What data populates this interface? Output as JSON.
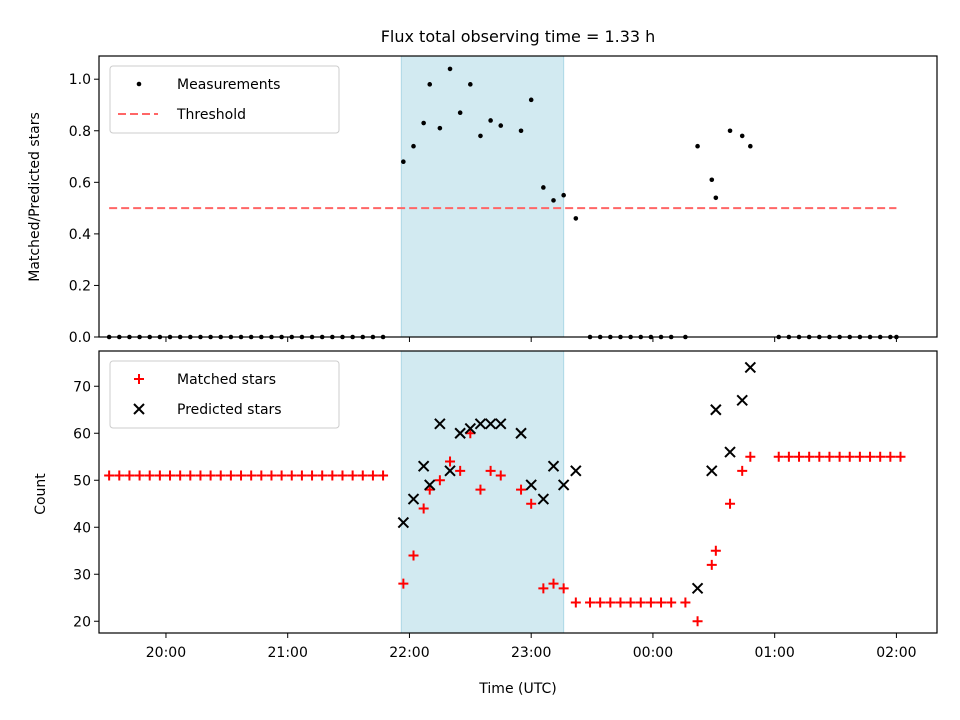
{
  "colors": {
    "span_fill": "#add8e6",
    "measurement": "#000000",
    "threshold": "#ff6666",
    "matched": "#ff0000",
    "predicted": "#000000"
  },
  "chart_data": [
    {
      "type": "scatter",
      "title": "Flux total observing time = 1.33 h",
      "xlabel": "",
      "ylabel": "Matched/Predicted stars",
      "xlim": [
        "19:27",
        "02:20"
      ],
      "ylim": [
        0,
        1.09
      ],
      "yticks": [
        "0.0",
        "0.2",
        "0.4",
        "0.6",
        "0.8",
        "1.0"
      ],
      "shaded_span": [
        "21:56",
        "23:16"
      ],
      "legend_position": "upper-left",
      "legend": [
        "Measurements",
        "Threshold"
      ],
      "series": [
        {
          "name": "Measurements",
          "points": [
            [
              "19:32",
              0
            ],
            [
              "19:37",
              0
            ],
            [
              "19:42",
              0
            ],
            [
              "19:47",
              0
            ],
            [
              "19:52",
              0
            ],
            [
              "19:57",
              0
            ],
            [
              "20:02",
              0
            ],
            [
              "20:07",
              0
            ],
            [
              "20:12",
              0
            ],
            [
              "20:17",
              0
            ],
            [
              "20:22",
              0
            ],
            [
              "20:27",
              0
            ],
            [
              "20:32",
              0
            ],
            [
              "20:37",
              0
            ],
            [
              "20:42",
              0
            ],
            [
              "20:47",
              0
            ],
            [
              "20:52",
              0
            ],
            [
              "20:57",
              0
            ],
            [
              "21:02",
              0
            ],
            [
              "21:07",
              0
            ],
            [
              "21:12",
              0
            ],
            [
              "21:17",
              0
            ],
            [
              "21:22",
              0
            ],
            [
              "21:27",
              0
            ],
            [
              "21:32",
              0
            ],
            [
              "21:37",
              0
            ],
            [
              "21:42",
              0
            ],
            [
              "21:47",
              0
            ],
            [
              "21:57",
              0.68
            ],
            [
              "22:02",
              0.74
            ],
            [
              "22:07",
              0.83
            ],
            [
              "22:10",
              0.98
            ],
            [
              "22:15",
              0.81
            ],
            [
              "22:20",
              1.04
            ],
            [
              "22:25",
              0.87
            ],
            [
              "22:30",
              0.98
            ],
            [
              "22:35",
              0.78
            ],
            [
              "22:40",
              0.84
            ],
            [
              "22:45",
              0.82
            ],
            [
              "22:55",
              0.8
            ],
            [
              "23:00",
              0.92
            ],
            [
              "23:06",
              0.58
            ],
            [
              "23:11",
              0.53
            ],
            [
              "23:16",
              0.55
            ],
            [
              "23:22",
              0.46
            ],
            [
              "23:29",
              0
            ],
            [
              "23:34",
              0
            ],
            [
              "23:39",
              0
            ],
            [
              "23:44",
              0
            ],
            [
              "23:49",
              0
            ],
            [
              "23:54",
              0
            ],
            [
              "23:59",
              0
            ],
            [
              "00:04",
              0
            ],
            [
              "00:09",
              0
            ],
            [
              "00:16",
              0
            ],
            [
              "00:22",
              0.74
            ],
            [
              "00:29",
              0.61
            ],
            [
              "00:31",
              0.54
            ],
            [
              "00:38",
              0.8
            ],
            [
              "00:44",
              0.78
            ],
            [
              "00:48",
              0.74
            ],
            [
              "01:02",
              0
            ],
            [
              "01:07",
              0
            ],
            [
              "01:12",
              0
            ],
            [
              "01:17",
              0
            ],
            [
              "01:22",
              0
            ],
            [
              "01:27",
              0
            ],
            [
              "01:32",
              0
            ],
            [
              "01:37",
              0
            ],
            [
              "01:42",
              0
            ],
            [
              "01:47",
              0
            ],
            [
              "01:52",
              0
            ],
            [
              "01:57",
              0
            ],
            [
              "02:00",
              0
            ]
          ]
        },
        {
          "name": "Threshold",
          "points": [
            [
              "19:32",
              0.5
            ],
            [
              "02:00",
              0.5
            ]
          ]
        }
      ]
    },
    {
      "type": "scatter",
      "xlabel": "Time (UTC)",
      "ylabel": "Count",
      "xlim": [
        "19:27",
        "02:20"
      ],
      "ylim": [
        17.5,
        77.5
      ],
      "xticks": [
        "20:00",
        "21:00",
        "22:00",
        "23:00",
        "00:00",
        "01:00",
        "02:00"
      ],
      "yticks": [
        "20",
        "30",
        "40",
        "50",
        "60",
        "70"
      ],
      "shaded_span": [
        "21:56",
        "23:16"
      ],
      "legend_position": "upper-left",
      "legend": [
        "Matched stars",
        "Predicted stars"
      ],
      "series": [
        {
          "name": "Matched stars",
          "points": [
            [
              "19:32",
              51
            ],
            [
              "19:37",
              51
            ],
            [
              "19:42",
              51
            ],
            [
              "19:47",
              51
            ],
            [
              "19:52",
              51
            ],
            [
              "19:57",
              51
            ],
            [
              "20:02",
              51
            ],
            [
              "20:07",
              51
            ],
            [
              "20:12",
              51
            ],
            [
              "20:17",
              51
            ],
            [
              "20:22",
              51
            ],
            [
              "20:27",
              51
            ],
            [
              "20:32",
              51
            ],
            [
              "20:37",
              51
            ],
            [
              "20:42",
              51
            ],
            [
              "20:47",
              51
            ],
            [
              "20:52",
              51
            ],
            [
              "20:57",
              51
            ],
            [
              "21:02",
              51
            ],
            [
              "21:07",
              51
            ],
            [
              "21:12",
              51
            ],
            [
              "21:17",
              51
            ],
            [
              "21:22",
              51
            ],
            [
              "21:27",
              51
            ],
            [
              "21:32",
              51
            ],
            [
              "21:37",
              51
            ],
            [
              "21:42",
              51
            ],
            [
              "21:47",
              51
            ],
            [
              "21:57",
              28
            ],
            [
              "22:02",
              34
            ],
            [
              "22:07",
              44
            ],
            [
              "22:10",
              48
            ],
            [
              "22:15",
              50
            ],
            [
              "22:20",
              54
            ],
            [
              "22:25",
              52
            ],
            [
              "22:30",
              60
            ],
            [
              "22:35",
              48
            ],
            [
              "22:40",
              52
            ],
            [
              "22:45",
              51
            ],
            [
              "22:55",
              48
            ],
            [
              "23:00",
              45
            ],
            [
              "23:06",
              27
            ],
            [
              "23:11",
              28
            ],
            [
              "23:16",
              27
            ],
            [
              "23:22",
              24
            ],
            [
              "23:29",
              24
            ],
            [
              "23:34",
              24
            ],
            [
              "23:39",
              24
            ],
            [
              "23:44",
              24
            ],
            [
              "23:49",
              24
            ],
            [
              "23:54",
              24
            ],
            [
              "23:59",
              24
            ],
            [
              "00:04",
              24
            ],
            [
              "00:09",
              24
            ],
            [
              "00:16",
              24
            ],
            [
              "00:22",
              20
            ],
            [
              "00:29",
              32
            ],
            [
              "00:31",
              35
            ],
            [
              "00:38",
              45
            ],
            [
              "00:44",
              52
            ],
            [
              "00:48",
              55
            ],
            [
              "01:02",
              55
            ],
            [
              "01:07",
              55
            ],
            [
              "01:12",
              55
            ],
            [
              "01:17",
              55
            ],
            [
              "01:22",
              55
            ],
            [
              "01:27",
              55
            ],
            [
              "01:32",
              55
            ],
            [
              "01:37",
              55
            ],
            [
              "01:42",
              55
            ],
            [
              "01:47",
              55
            ],
            [
              "01:52",
              55
            ],
            [
              "01:57",
              55
            ],
            [
              "02:02",
              55
            ]
          ]
        },
        {
          "name": "Predicted stars",
          "points": [
            [
              "21:57",
              41
            ],
            [
              "22:02",
              46
            ],
            [
              "22:07",
              53
            ],
            [
              "22:10",
              49
            ],
            [
              "22:15",
              62
            ],
            [
              "22:20",
              52
            ],
            [
              "22:25",
              60
            ],
            [
              "22:30",
              61
            ],
            [
              "22:35",
              62
            ],
            [
              "22:40",
              62
            ],
            [
              "22:45",
              62
            ],
            [
              "22:55",
              60
            ],
            [
              "23:00",
              49
            ],
            [
              "23:06",
              46
            ],
            [
              "23:11",
              53
            ],
            [
              "23:16",
              49
            ],
            [
              "23:22",
              52
            ],
            [
              "00:22",
              27
            ],
            [
              "00:29",
              52
            ],
            [
              "00:31",
              65
            ],
            [
              "00:38",
              56
            ],
            [
              "00:44",
              67
            ],
            [
              "00:48",
              74
            ]
          ]
        }
      ]
    }
  ]
}
